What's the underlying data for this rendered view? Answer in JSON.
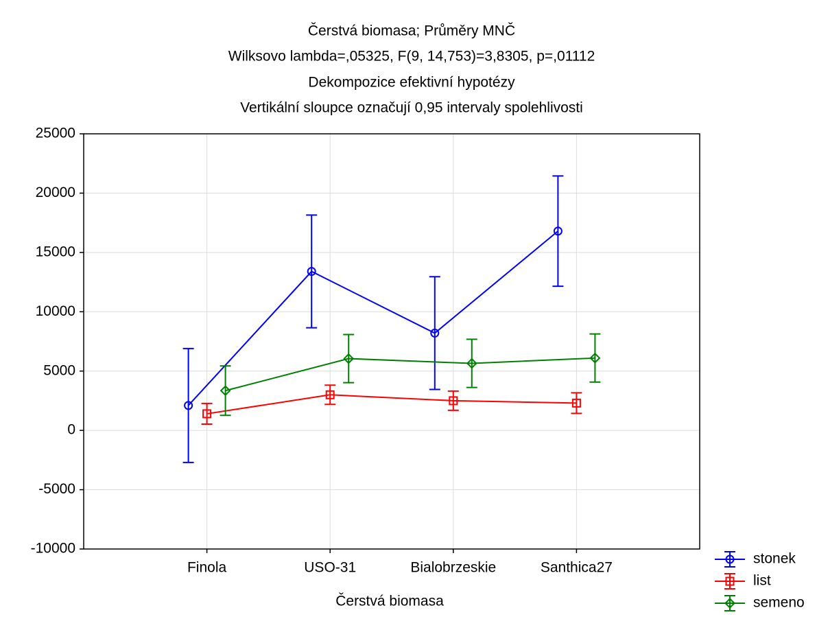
{
  "chart_data": {
    "type": "line",
    "title": "Čerstvá biomasa; Průměry MNČ",
    "subtitles": [
      "Wilksovo lambda=,05325, F(9, 14,753)=3,8305, p=,01112",
      "Dekompozice efektivní hypotézy",
      "Vertikální sloupce označují 0,95 intervaly spolehlivosti"
    ],
    "xlabel": "Čerstvá biomasa",
    "categories": [
      "Finola",
      "USO-31",
      "Bialobrzeskie",
      "Santhica27"
    ],
    "series": [
      {
        "name": "stonek",
        "color": "#0000ff",
        "marker": "circle",
        "values": [
          2100,
          13400,
          8200,
          16800
        ],
        "errors": [
          4800,
          4750,
          4750,
          4650
        ]
      },
      {
        "name": "list",
        "color": "#ff0000",
        "marker": "square",
        "values": [
          1400,
          3000,
          2500,
          2300
        ],
        "errors": [
          870,
          810,
          810,
          870
        ]
      },
      {
        "name": "semeno",
        "color": "#008000",
        "marker": "diamond",
        "values": [
          3350,
          6050,
          5650,
          6100
        ],
        "errors": [
          2080,
          2030,
          2030,
          2030
        ]
      }
    ],
    "ylim": [
      -10000,
      25000
    ],
    "yticks": [
      -10000,
      -5000,
      0,
      5000,
      10000,
      15000,
      20000,
      25000
    ],
    "grid": true,
    "legend": "lower right"
  }
}
